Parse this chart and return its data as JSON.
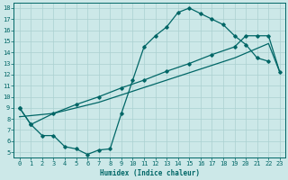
{
  "xlabel": "Humidex (Indice chaleur)",
  "bg_color": "#cce8e8",
  "line_color": "#006666",
  "grid_color": "#aad0d0",
  "xlim": [
    -0.5,
    23.5
  ],
  "ylim": [
    4.5,
    18.5
  ],
  "xticks": [
    0,
    1,
    2,
    3,
    4,
    5,
    6,
    7,
    8,
    9,
    10,
    11,
    12,
    13,
    14,
    15,
    16,
    17,
    18,
    19,
    20,
    21,
    22,
    23
  ],
  "yticks": [
    5,
    6,
    7,
    8,
    9,
    10,
    11,
    12,
    13,
    14,
    15,
    16,
    17,
    18
  ],
  "curve_x": [
    0,
    1,
    2,
    3,
    4,
    5,
    6,
    7,
    8,
    9,
    10,
    11,
    12,
    13,
    14,
    15,
    16,
    17,
    18,
    19,
    20,
    21,
    22
  ],
  "curve_y": [
    9,
    7.5,
    6.5,
    6.5,
    5.5,
    5.3,
    4.8,
    5.2,
    5.3,
    8.5,
    11.5,
    14.5,
    15.5,
    16.3,
    17.6,
    18.0,
    17.5,
    17.0,
    16.5,
    15.5,
    14.7,
    13.5,
    13.2
  ],
  "upper_x": [
    0,
    1,
    3,
    5,
    7,
    9,
    11,
    13,
    15,
    17,
    19,
    20,
    21,
    22,
    23
  ],
  "upper_y": [
    9,
    7.5,
    8.5,
    9.3,
    10.0,
    10.8,
    11.5,
    12.3,
    13.0,
    13.8,
    14.5,
    15.5,
    15.5,
    15.5,
    12.2
  ],
  "lower_x": [
    0,
    3,
    5,
    7,
    10,
    13,
    16,
    19,
    22,
    23
  ],
  "lower_y": [
    8.2,
    8.5,
    9.0,
    9.5,
    10.5,
    11.5,
    12.5,
    13.5,
    14.8,
    12.2
  ]
}
